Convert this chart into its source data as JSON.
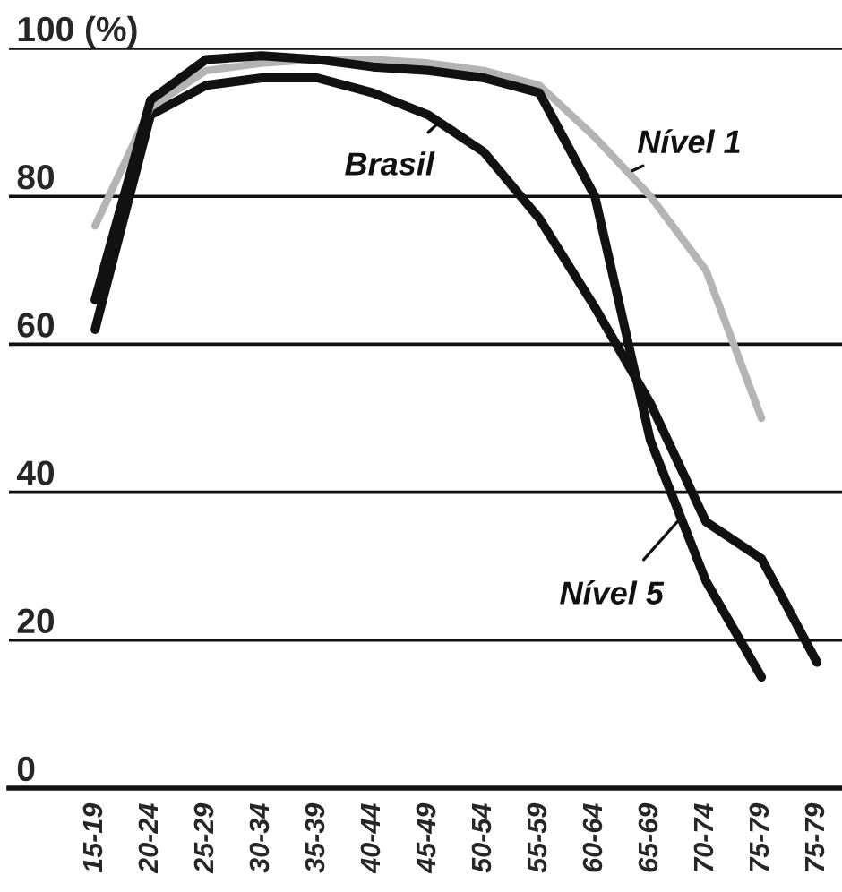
{
  "chart_data": {
    "type": "line",
    "categories": [
      "15-19",
      "20-24",
      "25-29",
      "30-34",
      "35-39",
      "40-44",
      "45-49",
      "50-54",
      "55-59",
      "60-64",
      "65-69",
      "70-74",
      "75-79",
      "75-79"
    ],
    "series": [
      {
        "name": "Brasil",
        "color": "#111111",
        "values": [
          62,
          91,
          95,
          96,
          96,
          94,
          91,
          86,
          77,
          65,
          52,
          36,
          31,
          17
        ]
      },
      {
        "name": "Nível 1",
        "color": "#b4b4b4",
        "values": [
          76,
          92,
          97,
          98,
          98.5,
          98.5,
          98,
          97,
          95,
          88,
          80,
          70,
          50,
          null
        ]
      },
      {
        "name": "Nível 5",
        "color": "#111111",
        "values": [
          66,
          93,
          98.5,
          99,
          98.5,
          97.5,
          97,
          96,
          94,
          80,
          47,
          28,
          15,
          null
        ]
      }
    ],
    "ylim": [
      0,
      100
    ],
    "yticks": [
      0,
      20,
      40,
      60,
      80,
      {
        "value": 100,
        "label": "100 (%)"
      }
    ],
    "grid": "y",
    "legend": "right",
    "marker": "none",
    "line_style": "solid"
  }
}
